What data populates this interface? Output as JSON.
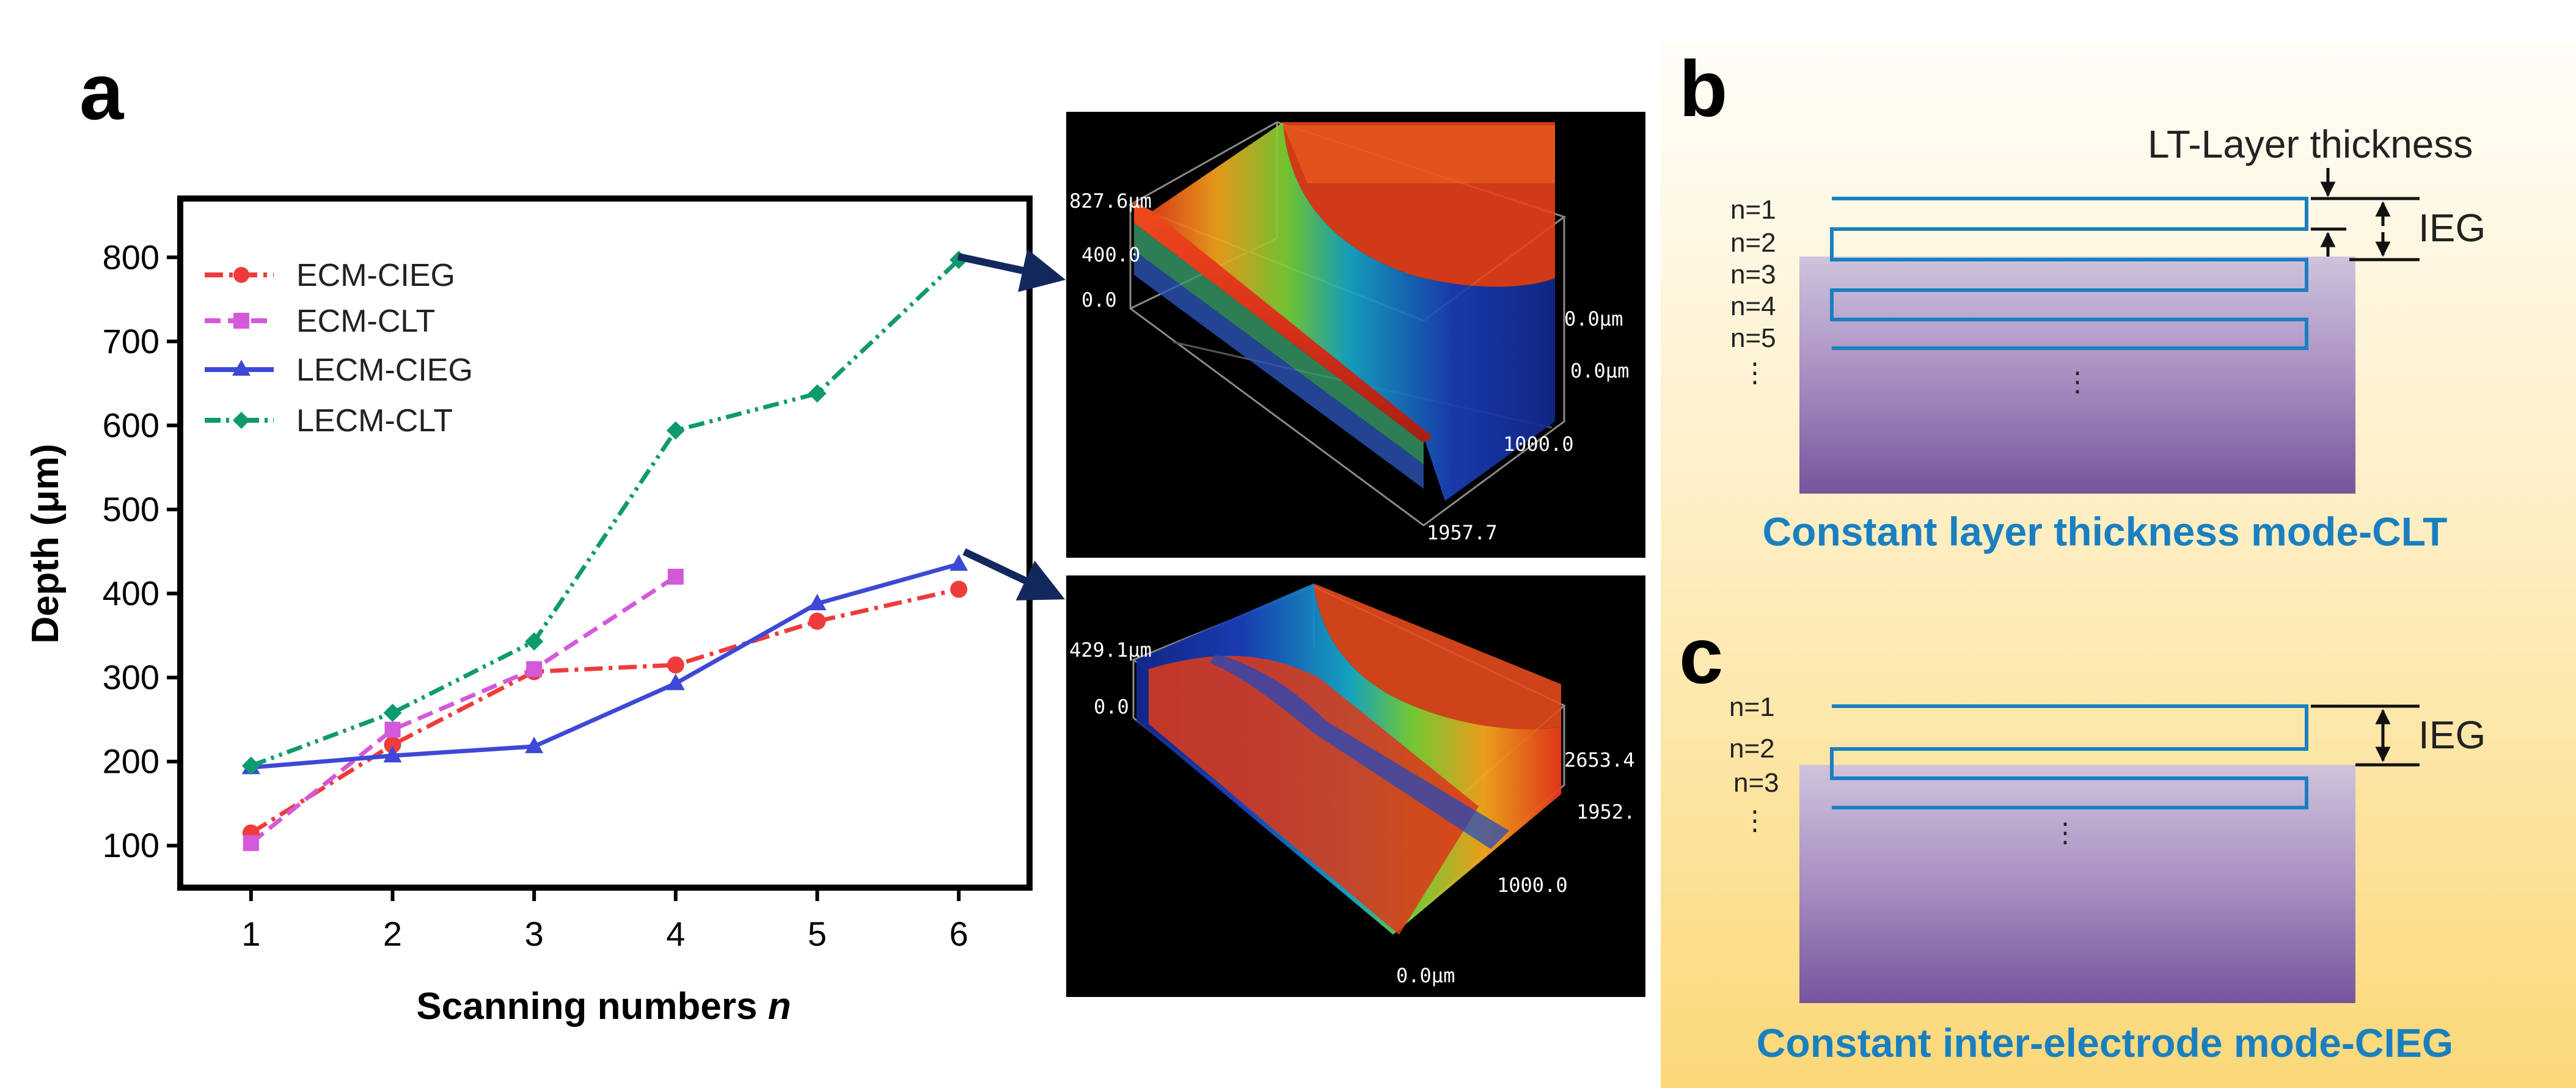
{
  "panel_labels": {
    "a": "a",
    "b": "b",
    "c": "c"
  },
  "colors": {
    "ECM-CIEG": "#ee3b3b",
    "ECM-CLT": "#d459d8",
    "LECM-CIEG": "#3e48d6",
    "LECM-CLT": "#0d9a6e",
    "electrode": "#1a7fc0",
    "arrow": "#13285c"
  },
  "chart_data": {
    "type": "line",
    "title": "",
    "xlabel": "Scanning numbers",
    "xlabel_var": "n",
    "ylabel": "Depth (μm)",
    "x": [
      1,
      2,
      3,
      4,
      5,
      6
    ],
    "xlim": [
      0.5,
      6.5
    ],
    "ylim": [
      50,
      870
    ],
    "yticks": [
      100,
      200,
      300,
      400,
      500,
      600,
      700,
      800
    ],
    "legend_position": "top-left",
    "series": [
      {
        "name": "ECM-CIEG",
        "marker": "circle",
        "dash": "dashdot",
        "x": [
          1,
          2,
          3,
          4,
          5,
          6
        ],
        "values": [
          115,
          220,
          307,
          315,
          367,
          405
        ]
      },
      {
        "name": "ECM-CLT",
        "marker": "square",
        "dash": "dash",
        "x": [
          1,
          2,
          3,
          4
        ],
        "values": [
          103,
          238,
          310,
          420
        ]
      },
      {
        "name": "LECM-CIEG",
        "marker": "triangle",
        "dash": "solid",
        "x": [
          1,
          2,
          3,
          4,
          5,
          6
        ],
        "values": [
          193,
          207,
          218,
          293,
          388,
          435
        ]
      },
      {
        "name": "LECM-CLT",
        "marker": "diamond",
        "dash": "dashdotdot",
        "x": [
          1,
          2,
          3,
          4,
          5,
          6
        ],
        "values": [
          195,
          258,
          343,
          594,
          638,
          797
        ]
      }
    ]
  },
  "profile_top": {
    "z_labels": [
      "827.6μm",
      "400.0",
      "0.0"
    ],
    "axis_labels": [
      "0.0μm",
      "0.0μm",
      "1000.0",
      "1957.7"
    ]
  },
  "profile_bottom": {
    "z_labels": [
      "429.1μm",
      "0.0"
    ],
    "axis_labels": [
      "2653.4",
      "1952.",
      "1000.0",
      "0.0μm"
    ]
  },
  "diagram_b": {
    "layer_thickness_label": "LT-Layer thickness",
    "ieg_label": "IEG",
    "n_labels": [
      "n=1",
      "n=2",
      "n=3",
      "n=4",
      "n=5",
      "⋮"
    ],
    "caption": "Constant layer thickness mode-CLT"
  },
  "diagram_c": {
    "ieg_label": "IEG",
    "n_labels": [
      "n=1",
      "n=2",
      "n=3",
      "⋮"
    ],
    "caption": "Constant inter-electrode mode-CIEG"
  }
}
